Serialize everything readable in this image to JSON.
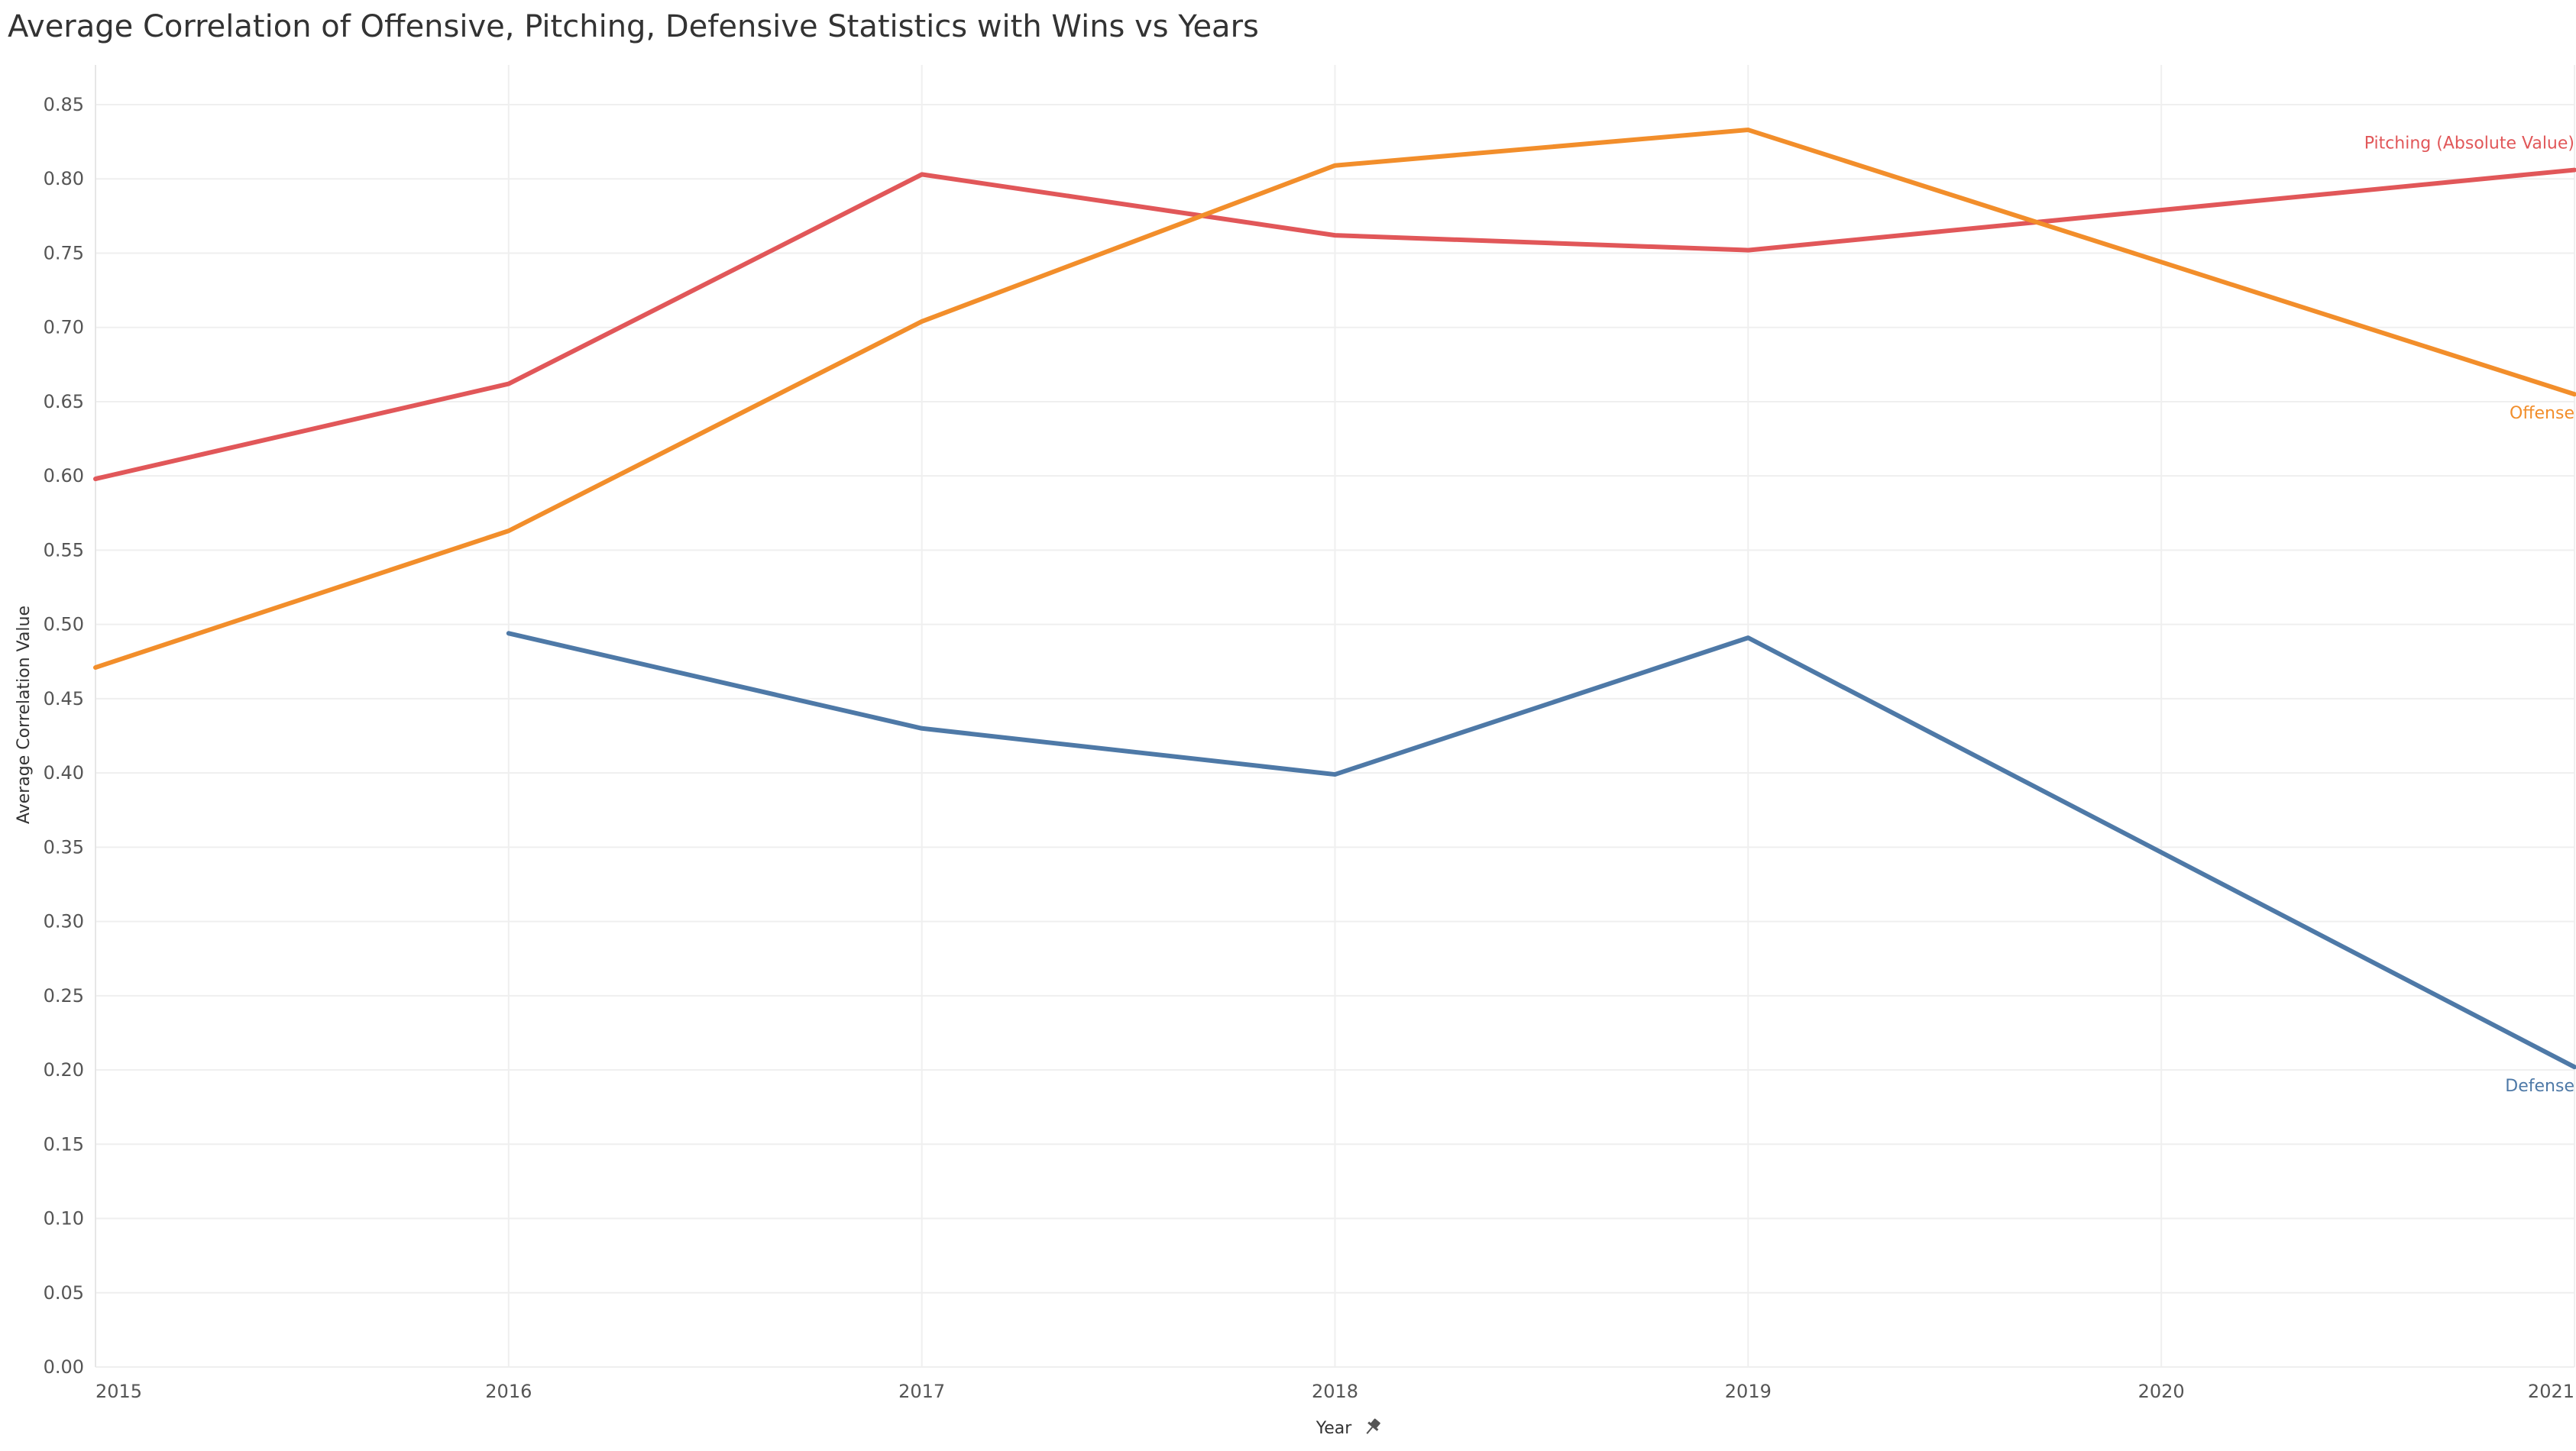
{
  "chart_data": {
    "type": "line",
    "title": "Average Correlation of Offensive, Pitching, Defensive Statistics  with Wins vs Years",
    "xlabel": "Year",
    "ylabel": "Average Correlation Value",
    "x": [
      2015,
      2016,
      2017,
      2018,
      2019,
      2020,
      2021
    ],
    "xlim": [
      2015,
      2021
    ],
    "ylim": [
      0,
      0.85
    ],
    "y_ticks": [
      "0.00",
      "0.05",
      "0.10",
      "0.15",
      "0.20",
      "0.25",
      "0.30",
      "0.35",
      "0.40",
      "0.45",
      "0.50",
      "0.55",
      "0.60",
      "0.65",
      "0.70",
      "0.75",
      "0.80",
      "0.85"
    ],
    "x_ticks": [
      "2015",
      "2016",
      "2017",
      "2018",
      "2019",
      "2020",
      "2021"
    ],
    "grid": true,
    "legend": "inline labels at line ends",
    "series": [
      {
        "name": "Pitching (Absolute Value)",
        "color": "#e15759",
        "points": [
          [
            2015,
            0.598
          ],
          [
            2016,
            0.662
          ],
          [
            2017,
            0.803
          ],
          [
            2018,
            0.762
          ],
          [
            2019,
            0.752
          ],
          [
            2021,
            0.806
          ]
        ]
      },
      {
        "name": "Offense",
        "color": "#f28e2b",
        "points": [
          [
            2015,
            0.471
          ],
          [
            2016,
            0.563
          ],
          [
            2017,
            0.704
          ],
          [
            2018,
            0.809
          ],
          [
            2019,
            0.833
          ],
          [
            2021,
            0.655
          ]
        ]
      },
      {
        "name": "Defense",
        "color": "#4e79a7",
        "points": [
          [
            2016,
            0.494
          ],
          [
            2017,
            0.43
          ],
          [
            2018,
            0.399
          ],
          [
            2019,
            0.491
          ],
          [
            2021,
            0.202
          ]
        ]
      }
    ]
  },
  "year_pin_icon": "pin-icon"
}
